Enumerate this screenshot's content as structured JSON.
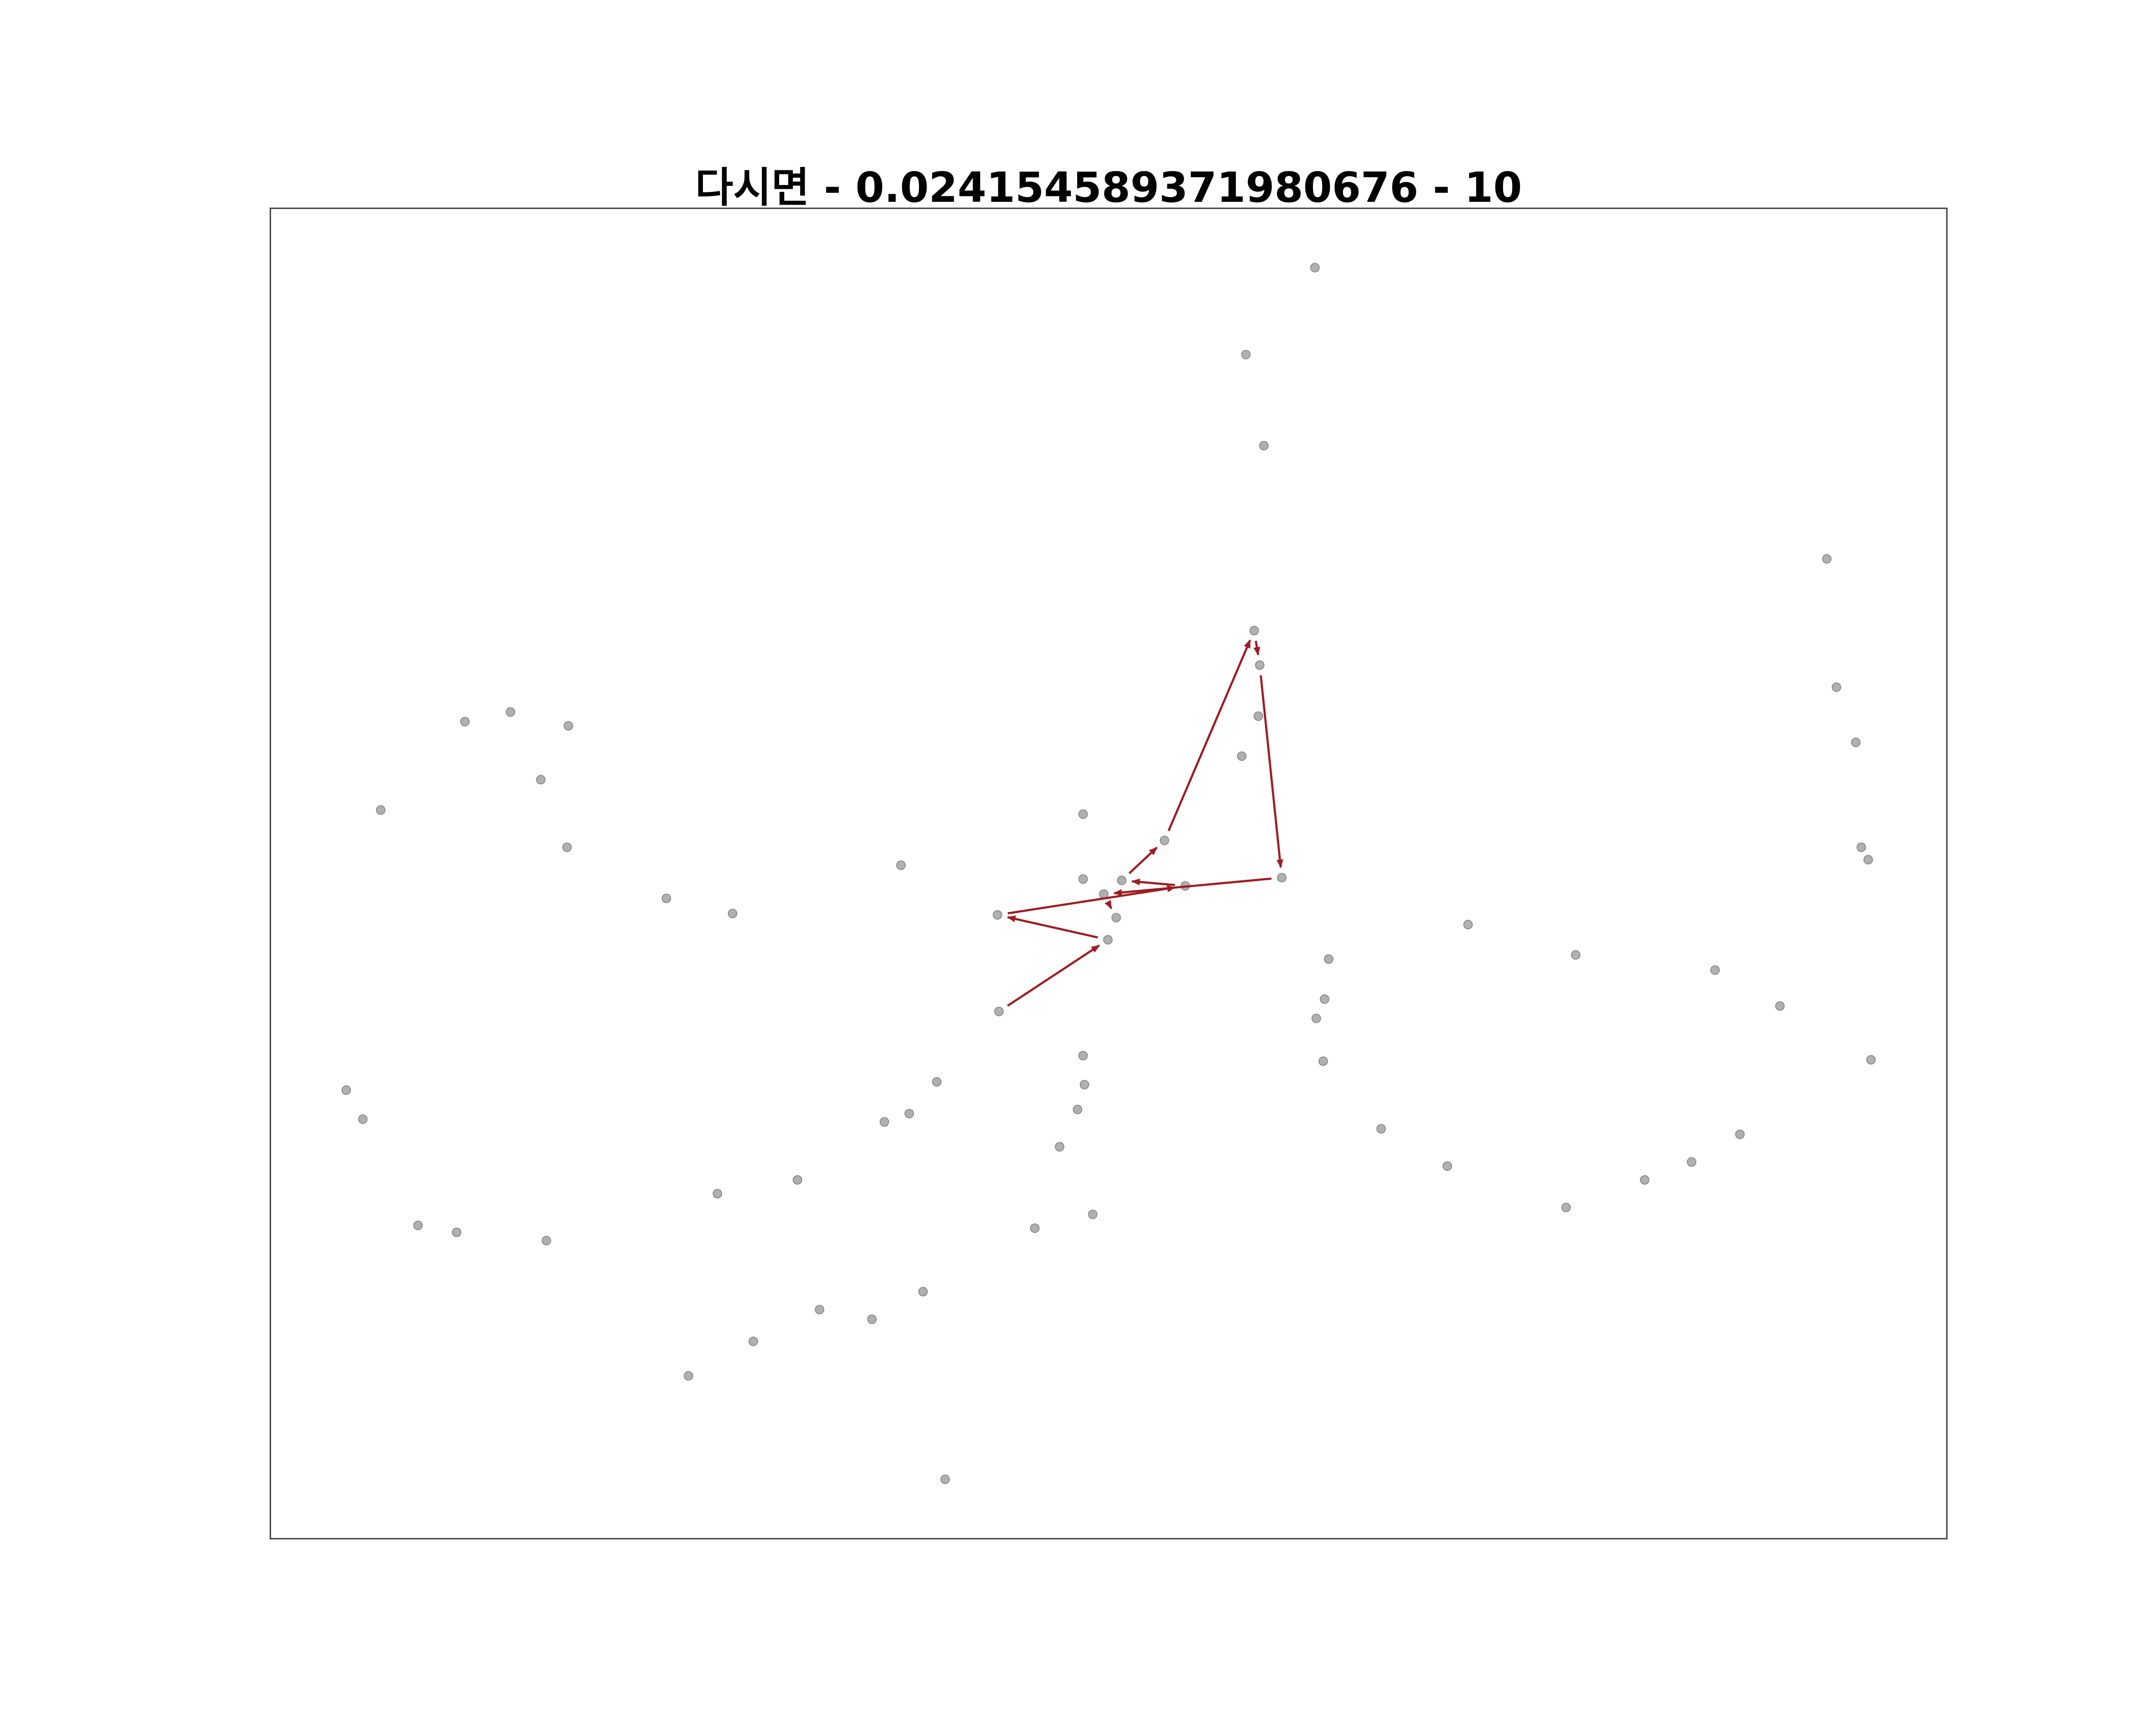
{
  "chart_data": {
    "type": "scatter",
    "title": "다시면 - 0.024154589371980676 - 10",
    "x": [
      757,
      707,
      720,
      1128,
      1135,
      1149,
      1153,
      1158,
      1160,
      713,
      717,
      716,
      704,
      141,
      174,
      216,
      196,
      80,
      215,
      287,
      335,
      457,
      589,
      589,
      617,
      663,
      604,
      613,
      527,
      607,
      528,
      733,
      648,
      767,
      764,
      758,
      763,
      868,
      946,
      1047,
      1094,
      1065,
      1030,
      996,
      939,
      853,
      805,
      589,
      590,
      585,
      572,
      596,
      554,
      483,
      463,
      445,
      382,
      324,
      55,
      67,
      107,
      135,
      200,
      473,
      436,
      398,
      350,
      303,
      489
    ],
    "y": [
      921,
      858,
      792,
      710,
      617,
      577,
      501,
      492,
      347,
      658,
      633,
      596,
      567,
      592,
      599,
      589,
      550,
      528,
      501,
      464,
      453,
      488,
      525,
      478,
      477,
      473,
      467,
      450,
      452,
      434,
      382,
      479,
      506,
      420,
      391,
      377,
      346,
      445,
      423,
      412,
      386,
      293,
      273,
      260,
      240,
      270,
      297,
      350,
      329,
      311,
      284,
      235,
      225,
      331,
      308,
      302,
      260,
      250,
      325,
      304,
      227,
      222,
      216,
      179,
      159,
      166,
      143,
      118,
      43
    ],
    "color": "#b0b0b0",
    "path": {
      "x": [
        528,
        607,
        527,
        663,
        617,
        648,
        713,
        717,
        733,
        604,
        613
      ],
      "y": [
        382,
        434,
        452,
        473,
        477,
        506,
        658,
        633,
        479,
        467,
        450
      ],
      "color": "#a01c22"
    },
    "xlim": [
      0,
      1215
    ],
    "ylim": [
      0,
      964
    ]
  }
}
